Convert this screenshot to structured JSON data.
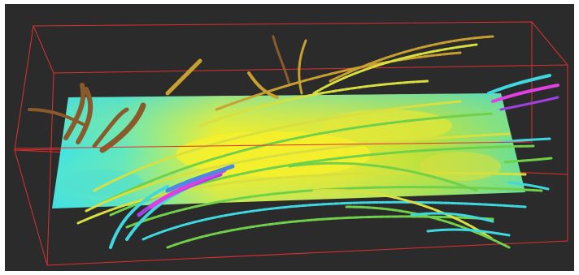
{
  "scene": {
    "background_color": "#2b2b2b",
    "bounding_box_color": "#e03030",
    "slice_plane": {
      "low_color": "#3fe3e6",
      "high_color": "#f4ef2a"
    },
    "streamline_colors": {
      "brown": "#8a5a2b",
      "tan": "#c8a030",
      "yellow": "#d8e040",
      "green": "#70d04a",
      "cyan": "#40d8e0",
      "blue": "#4a8ae0",
      "violet": "#a040e0",
      "magenta": "#e040e0"
    }
  }
}
